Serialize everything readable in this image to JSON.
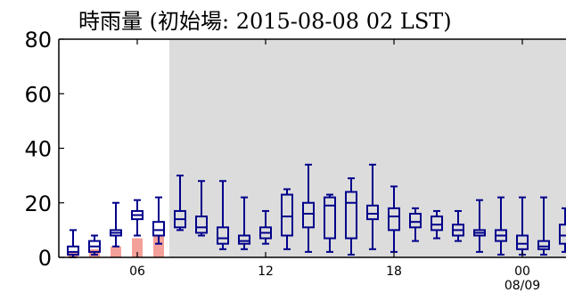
{
  "chart_data": {
    "type": "box",
    "title": "時雨量 (初始場: 2015-08-08 02 LST)",
    "ylim": [
      0,
      80
    ],
    "yticks": [
      "0",
      "20",
      "40",
      "60",
      "80"
    ],
    "xticks": [
      {
        "hour": 6,
        "label": "06"
      },
      {
        "hour": 12,
        "label": "12"
      },
      {
        "hour": 18,
        "label": "18"
      },
      {
        "hour": 24,
        "label": "00",
        "sublabel": "08/09"
      }
    ],
    "xlim": [
      2,
      27
    ],
    "observed_until_hour": 7.5,
    "colors": {
      "shade": "#dcdcdc",
      "box": "#00008b",
      "observed": "#f4a09a",
      "axis": "#000000"
    },
    "observed": [
      {
        "hour": 3,
        "value": 2
      },
      {
        "hour": 4,
        "value": 3
      },
      {
        "hour": 5,
        "value": 4
      },
      {
        "hour": 6,
        "value": 7
      },
      {
        "hour": 7,
        "value": 8
      }
    ],
    "boxes": [
      {
        "hour": 3,
        "min": 0,
        "q1": 1,
        "median": 2,
        "q3": 4,
        "max": 10
      },
      {
        "hour": 4,
        "min": 1,
        "q1": 2,
        "median": 4,
        "q3": 6,
        "max": 8
      },
      {
        "hour": 5,
        "min": 4,
        "q1": 8,
        "median": 9,
        "q3": 10,
        "max": 20
      },
      {
        "hour": 6,
        "min": 8,
        "q1": 14,
        "median": 15.5,
        "q3": 17,
        "max": 21
      },
      {
        "hour": 7,
        "min": 5,
        "q1": 8,
        "median": 10,
        "q3": 13,
        "max": 22
      },
      {
        "hour": 8,
        "min": 10,
        "q1": 11,
        "median": 14,
        "q3": 17,
        "max": 30
      },
      {
        "hour": 9,
        "min": 8,
        "q1": 9,
        "median": 11,
        "q3": 15,
        "max": 28
      },
      {
        "hour": 10,
        "min": 3,
        "q1": 5,
        "median": 7,
        "q3": 11,
        "max": 28
      },
      {
        "hour": 11,
        "min": 3,
        "q1": 5,
        "median": 6,
        "q3": 8,
        "max": 22
      },
      {
        "hour": 12,
        "min": 5,
        "q1": 7,
        "median": 9,
        "q3": 11,
        "max": 17
      },
      {
        "hour": 13,
        "min": 3,
        "q1": 8,
        "median": 15,
        "q3": 23,
        "max": 25
      },
      {
        "hour": 14,
        "min": 2,
        "q1": 11,
        "median": 16,
        "q3": 20,
        "max": 34
      },
      {
        "hour": 15,
        "min": 2,
        "q1": 7,
        "median": 19,
        "q3": 22,
        "max": 23
      },
      {
        "hour": 16,
        "min": 1,
        "q1": 7,
        "median": 20,
        "q3": 24,
        "max": 29
      },
      {
        "hour": 17,
        "min": 3,
        "q1": 14,
        "median": 16,
        "q3": 19,
        "max": 34
      },
      {
        "hour": 18,
        "min": 2,
        "q1": 10,
        "median": 15,
        "q3": 18,
        "max": 26
      },
      {
        "hour": 19,
        "min": 6,
        "q1": 11,
        "median": 13,
        "q3": 16,
        "max": 18
      },
      {
        "hour": 20,
        "min": 7,
        "q1": 10,
        "median": 12,
        "q3": 15,
        "max": 17
      },
      {
        "hour": 21,
        "min": 6,
        "q1": 8,
        "median": 10,
        "q3": 12,
        "max": 17
      },
      {
        "hour": 22,
        "min": 2,
        "q1": 8,
        "median": 9,
        "q3": 10,
        "max": 21
      },
      {
        "hour": 23,
        "min": 1,
        "q1": 6,
        "median": 8,
        "q3": 10,
        "max": 22
      },
      {
        "hour": 24,
        "min": 1,
        "q1": 3,
        "median": 5,
        "q3": 8,
        "max": 22
      },
      {
        "hour": 25,
        "min": 1,
        "q1": 3,
        "median": 4,
        "q3": 6,
        "max": 22
      },
      {
        "hour": 26,
        "min": 2,
        "q1": 5,
        "median": 8,
        "q3": 12,
        "max": 18
      }
    ]
  }
}
